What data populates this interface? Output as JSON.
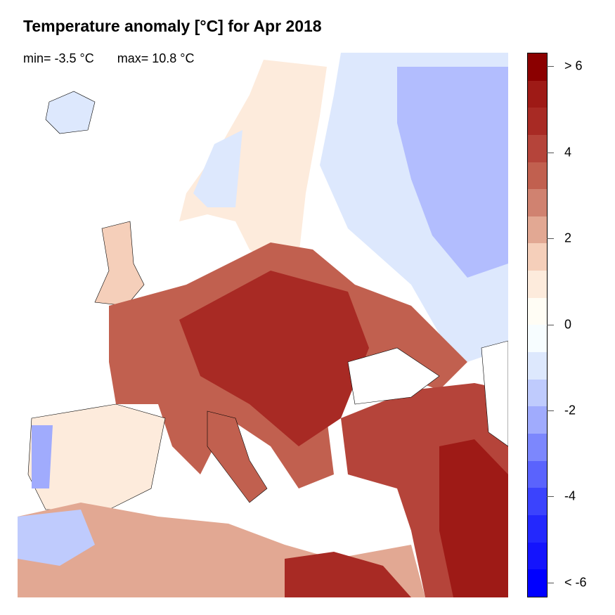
{
  "title": "Temperature anomaly [°C] for Apr 2018",
  "stats": {
    "min": "min= -3.5 °C",
    "max": "max= 10.8 °C"
  },
  "colorbar": {
    "colors": [
      "#8B0000",
      "#9E1A16",
      "#A82A24",
      "#B5443A",
      "#C1604F",
      "#D08270",
      "#E2A893",
      "#F5CFBA",
      "#FDEBDC",
      "#FFFDF5",
      "#F7FDFF",
      "#DDE8FD",
      "#BFCBFD",
      "#A0ABFD",
      "#7C87FD",
      "#5A63FD",
      "#3B43FD",
      "#2328FD",
      "#1414FD",
      "#0000FF"
    ],
    "ticks": [
      {
        "value": 6,
        "label": "> 6"
      },
      {
        "value": 4,
        "label": "4"
      },
      {
        "value": 2,
        "label": "2"
      },
      {
        "value": 0,
        "label": "0"
      },
      {
        "value": -2,
        "label": "-2"
      },
      {
        "value": -4,
        "label": "-4"
      },
      {
        "value": -6,
        "label": "< -6"
      }
    ]
  }
}
